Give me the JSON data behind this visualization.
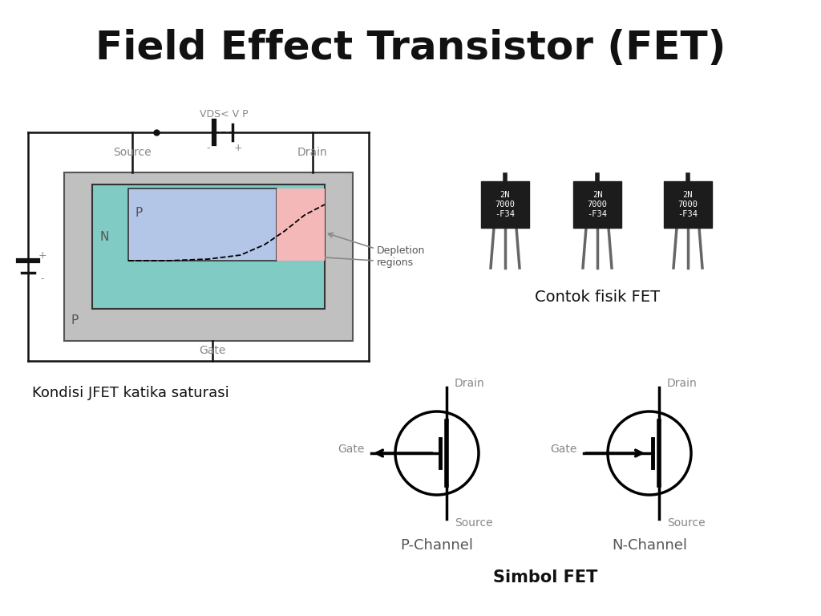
{
  "title": "Field Effect Transistor (FET)",
  "title_fontsize": 36,
  "title_fontweight": "bold",
  "bg_color": "#ffffff",
  "label_kondisi": "Kondisi JFET katika saturasi",
  "label_contok": "Contok fisik FET",
  "label_simbol": "Simbol FET",
  "label_pchannel": "P-Channel",
  "label_nchannel": "N-Channel",
  "label_source": "Source",
  "label_drain": "Drain",
  "label_gate": "Gate",
  "label_vds": "VDS< V P",
  "label_p_upper": "P",
  "label_n_region": "N",
  "label_p_bottom": "P",
  "label_depletion": "Depletion\nregions",
  "color_gray": "#c0c0c0",
  "color_teal": "#80cbc4",
  "color_blue_light": "#b3c6e7",
  "color_pink": "#f4b8b8",
  "color_dark": "#111111",
  "color_text_gray": "#888888",
  "color_wire": "#111111",
  "transistor_label": "2N\n7000\n-F34"
}
